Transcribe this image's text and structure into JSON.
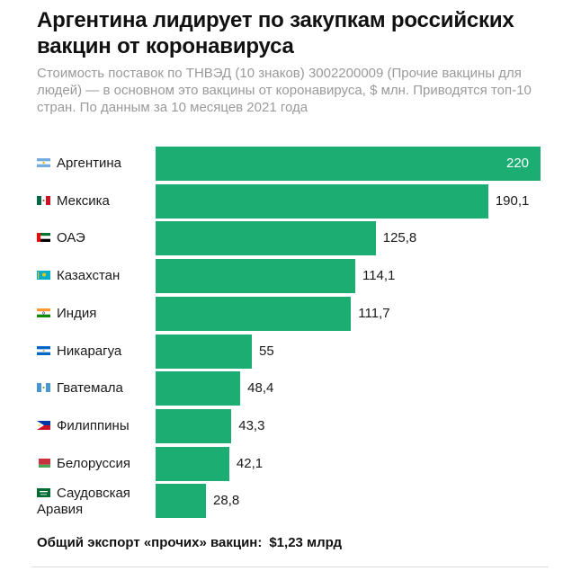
{
  "title": "Аргентина лидирует по закупкам российских вакцин от коронавируса",
  "subtitle": "Стоимость поставок по ТНВЭД (10 знаков) 3002200009 (Прочие вакцины для людей) — в основном это вакцины от коронавируса, $ млн. Приводятся топ-10 стран. По данным за 10 месяцев 2021 года",
  "chart_data": {
    "type": "bar",
    "orientation": "horizontal",
    "title": "Аргентина лидирует по закупкам российских вакцин от коронавируса",
    "subtitle": "Стоимость поставок по ТНВЭД (10 знаков) 3002200009 (Прочие вакцины для людей) — в основном это вакцины от коронавируса, $ млн. Приводятся топ-10 стран. По данным за 10 месяцев 2021 года",
    "categories": [
      "Аргентина",
      "Мексика",
      "ОАЭ",
      "Казахстан",
      "Индия",
      "Никарагуа",
      "Гватемала",
      "Филиппины",
      "Белоруссия",
      "Саудовская Аравия"
    ],
    "values": [
      220,
      190.1,
      125.8,
      114.1,
      111.7,
      55,
      48.4,
      43.3,
      42.1,
      28.8
    ],
    "value_labels": [
      "220",
      "190,1",
      "125,8",
      "114,1",
      "111,7",
      "55",
      "48,4",
      "43,3",
      "42,1",
      "28,8"
    ],
    "xlim": [
      0,
      220
    ],
    "grid": false,
    "legend": "none",
    "bar_color": "#1cad72"
  },
  "flags": [
    "argentina-flag-icon",
    "mexico-flag-icon",
    "uae-flag-icon",
    "kazakhstan-flag-icon",
    "india-flag-icon",
    "nicaragua-flag-icon",
    "guatemala-flag-icon",
    "philippines-flag-icon",
    "belarus-flag-icon",
    "saudi-arabia-flag-icon"
  ],
  "footer": {
    "label": "Общий экспорт «прочих» вакцин:",
    "amount": "$1,23 млрд"
  }
}
